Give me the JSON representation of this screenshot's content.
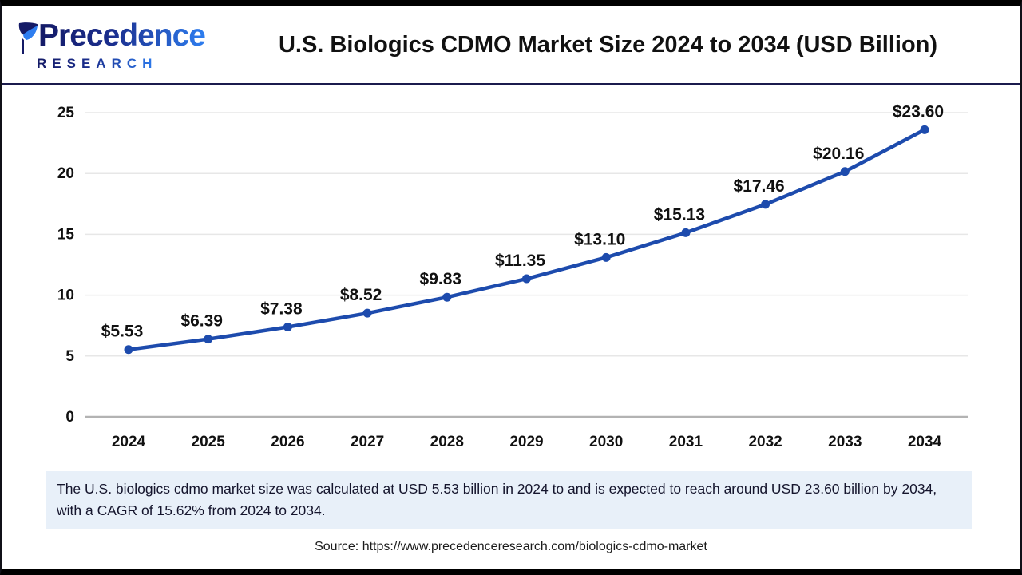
{
  "header": {
    "logo_word": "Precedence",
    "logo_sub": "RESEARCH",
    "title": "U.S. Biologics CDMO Market Size 2024 to 2034 (USD Billion)"
  },
  "chart_data": {
    "type": "line",
    "title": "U.S. Biologics CDMO Market Size 2024 to 2034 (USD Billion)",
    "categories": [
      "2024",
      "2025",
      "2026",
      "2027",
      "2028",
      "2029",
      "2030",
      "2031",
      "2032",
      "2033",
      "2034"
    ],
    "values": [
      5.53,
      6.39,
      7.38,
      8.52,
      9.83,
      11.35,
      13.1,
      15.13,
      17.46,
      20.16,
      23.6
    ],
    "point_labels": [
      "$5.53",
      "$6.39",
      "$7.38",
      "$8.52",
      "$9.83",
      "$11.35",
      "$13.10",
      "$15.13",
      "$17.46",
      "$20.16",
      "$23.60"
    ],
    "xlabel": "",
    "ylabel": "",
    "ylim": [
      0,
      25
    ],
    "yticks": [
      0,
      5,
      10,
      15,
      20,
      25
    ],
    "grid": true,
    "legend": "none",
    "colors": {
      "line": "#1d4bad",
      "marker": "#1d4bad",
      "grid": "#e7e7e7",
      "axis_line": "#b3b3b3",
      "tick_text": "#111111",
      "label_text": "#111111"
    }
  },
  "note": {
    "text": "The U.S. biologics cdmo market size was calculated at USD 5.53 billion in 2024 to and is expected to reach around USD 23.60 billion by 2034, with a CAGR of 15.62% from 2024 to 2034."
  },
  "source": {
    "text": "Source: https://www.precedenceresearch.com/biologics-cdmo-market"
  }
}
